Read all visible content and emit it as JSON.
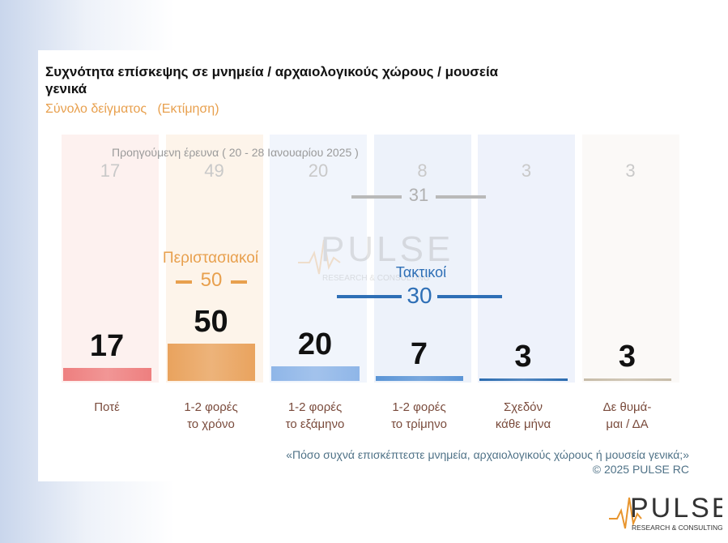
{
  "title": "Συχνότητα επίσκεψης σε μνημεία / αρχαιολογικούς χώρους / μουσεία γενικά",
  "subtitle": "Σύνολο δείγματος   (Εκτίμηση)",
  "previous_label": "Προηγούμενη έρευνα ( 20 - 28 Ιανουαρίου 2025 )",
  "question": "«Πόσο συχνά επισκέπτεστε μνημεία, αρχαιολογικούς χώρους ή μουσεία γενικά;»",
  "copyright": "©  2025  PULSE RC",
  "brand": {
    "name": "PULSE",
    "tagline": "RESEARCH & CONSULTING",
    "wm_tagline": "RESEARCH & CONSULTING"
  },
  "chart_data": {
    "type": "bar",
    "title": "Συχνότητα επίσκεψης σε μνημεία / αρχαιολογικούς χώρους / μουσεία γενικά",
    "categories": [
      [
        "Ποτέ"
      ],
      [
        "1-2 φορές",
        "το χρόνο"
      ],
      [
        "1-2 φορές",
        "το εξάμηνο"
      ],
      [
        "1-2 φορές",
        "το τρίμηνο"
      ],
      [
        "Σχεδόν",
        "κάθε μήνα"
      ],
      [
        "Δε θυμά-",
        "μαι / ΔΑ"
      ]
    ],
    "series": [
      {
        "values": [
          17,
          50,
          20,
          7,
          3,
          3
        ]
      },
      {
        "name": "Προηγούμενη έρευνα ( 20 - 28 Ιανουαρίου 2025 )",
        "values": [
          17,
          49,
          20,
          8,
          3,
          3
        ]
      }
    ],
    "groups": [
      {
        "label": "Περιστασιακοί",
        "value": "50",
        "color": "#e8a04e"
      },
      {
        "label": "Τακτικοί",
        "value": "30",
        "prev_value": "31",
        "color": "#2e6fb6"
      }
    ],
    "colors": [
      "#ee7f7f",
      "#e9a35e",
      "#8fb6e8",
      "#5b95d6",
      "#2b6cb0",
      "#c7bca8"
    ],
    "bg_colors": [
      "#fdf1ef",
      "#fdf4ea",
      "#f1f5fc",
      "#edf2fa",
      "#eef2fb",
      "#fbf9f7"
    ],
    "ylim": [
      0,
      100
    ]
  }
}
